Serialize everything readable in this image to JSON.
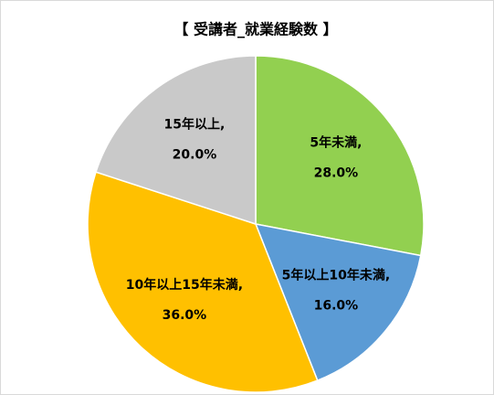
{
  "chart_data": {
    "type": "pie",
    "title": "【 受講者_就業経験数 】",
    "categories": [
      "5年未満",
      "5年以上10年未満",
      "10年以上15年未満",
      "15年以上"
    ],
    "values": [
      28,
      16,
      36,
      20
    ],
    "value_labels": [
      "28.0%",
      "16.0%",
      "36.0%",
      "20.0%"
    ],
    "label_separator": ",",
    "colors": [
      "#92d050",
      "#5b9bd5",
      "#ffc000",
      "#c9c9c9"
    ]
  }
}
